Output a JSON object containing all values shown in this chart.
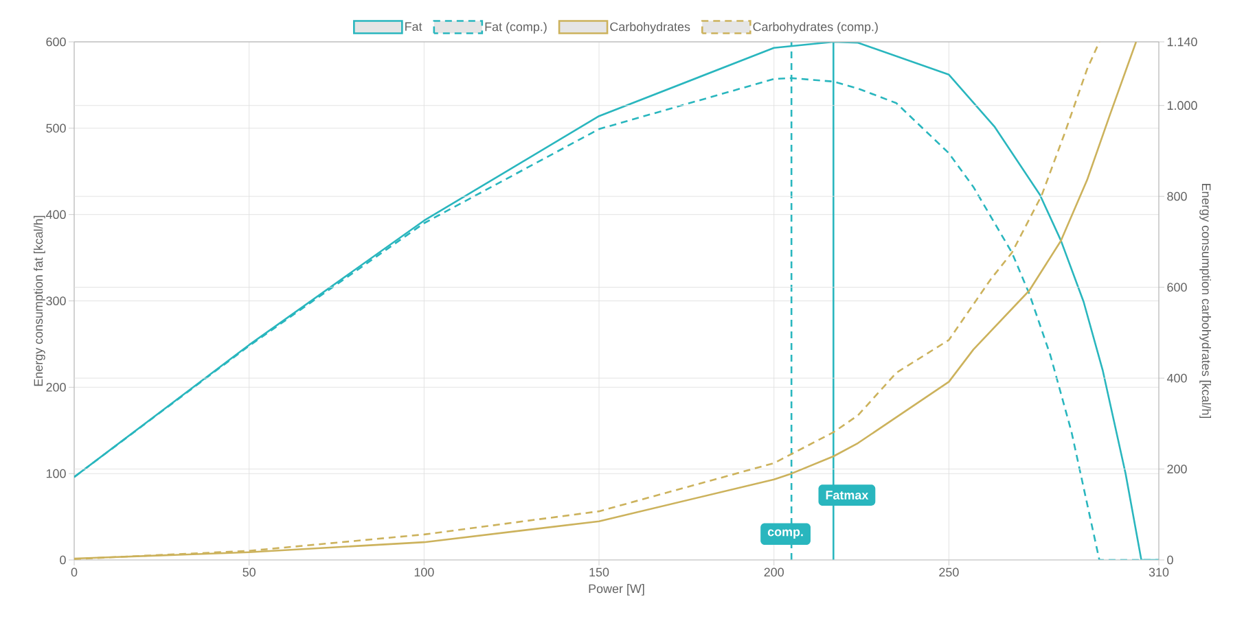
{
  "chart_data": {
    "type": "line",
    "xlabel": "Power [W]",
    "ylabel": "Energy consumption fat [kcal/h]",
    "y2label": "Energy consumption carbohydrates [kcal/h]",
    "xlim": [
      0,
      310
    ],
    "xticks": [
      0,
      50,
      100,
      150,
      200,
      250,
      310
    ],
    "ylim": [
      0,
      600
    ],
    "yticks": [
      0,
      100,
      200,
      300,
      400,
      500,
      600
    ],
    "y2lim": [
      0,
      1140
    ],
    "y2ticks": [
      0,
      200,
      400,
      600,
      800,
      {
        "value": 1000,
        "label": "1.000"
      },
      {
        "value": 1140,
        "label": "1.140"
      }
    ],
    "grid": true,
    "legend": "top",
    "series": [
      {
        "name": "Fat",
        "color": "#29b6be",
        "line_style": "solid",
        "x": [
          0,
          50,
          100,
          150,
          200,
          217,
          224,
          250,
          263,
          276,
          282,
          288.5,
          294,
          300.5,
          305,
          310
        ],
        "values": [
          96,
          249,
          393,
          514,
          593,
          600,
          599,
          562,
          502,
          423,
          370,
          299,
          219,
          100,
          0,
          0
        ]
      },
      {
        "name": "Fat (comp.)",
        "color": "#29b6be",
        "line_style": "dashed",
        "x": [
          0,
          50,
          100,
          150,
          200,
          205,
          217,
          224,
          235,
          250,
          257,
          268,
          273,
          279,
          285,
          293,
          310
        ],
        "values": [
          96,
          248,
          390,
          499,
          557,
          558,
          554,
          546,
          529,
          471,
          432,
          356,
          308,
          237,
          149,
          0,
          0
        ]
      },
      {
        "name": "Carbohydrates",
        "color": "#ccb25c",
        "line_style": "solid",
        "axis": "y2",
        "x": [
          0,
          50,
          100,
          150,
          200,
          205,
          217,
          224,
          250,
          257,
          273,
          282,
          289.5,
          296,
          303.5
        ],
        "values": [
          3,
          17,
          39,
          85,
          177,
          190,
          228,
          257,
          392,
          463,
          593,
          702,
          836,
          979,
          1140
        ]
      },
      {
        "name": "Carbohydrates (comp.)",
        "color": "#ccb25c",
        "line_style": "dashed",
        "axis": "y2",
        "x": [
          0,
          50,
          100,
          150,
          200,
          217,
          224,
          235,
          250,
          262,
          268,
          276.5,
          283,
          289.5,
          293
        ],
        "values": [
          2,
          20,
          56,
          107,
          213,
          281,
          318,
          412,
          484,
          618,
          676,
          802,
          937,
          1080,
          1140
        ]
      }
    ],
    "ref_lines": [
      {
        "axis": "x",
        "value": 217,
        "label": "Fatmax",
        "color": "#29b6be",
        "line_style": "solid"
      },
      {
        "axis": "x",
        "value": 205,
        "label": "comp.",
        "color": "#29b6be",
        "line_style": "dashed"
      }
    ]
  }
}
